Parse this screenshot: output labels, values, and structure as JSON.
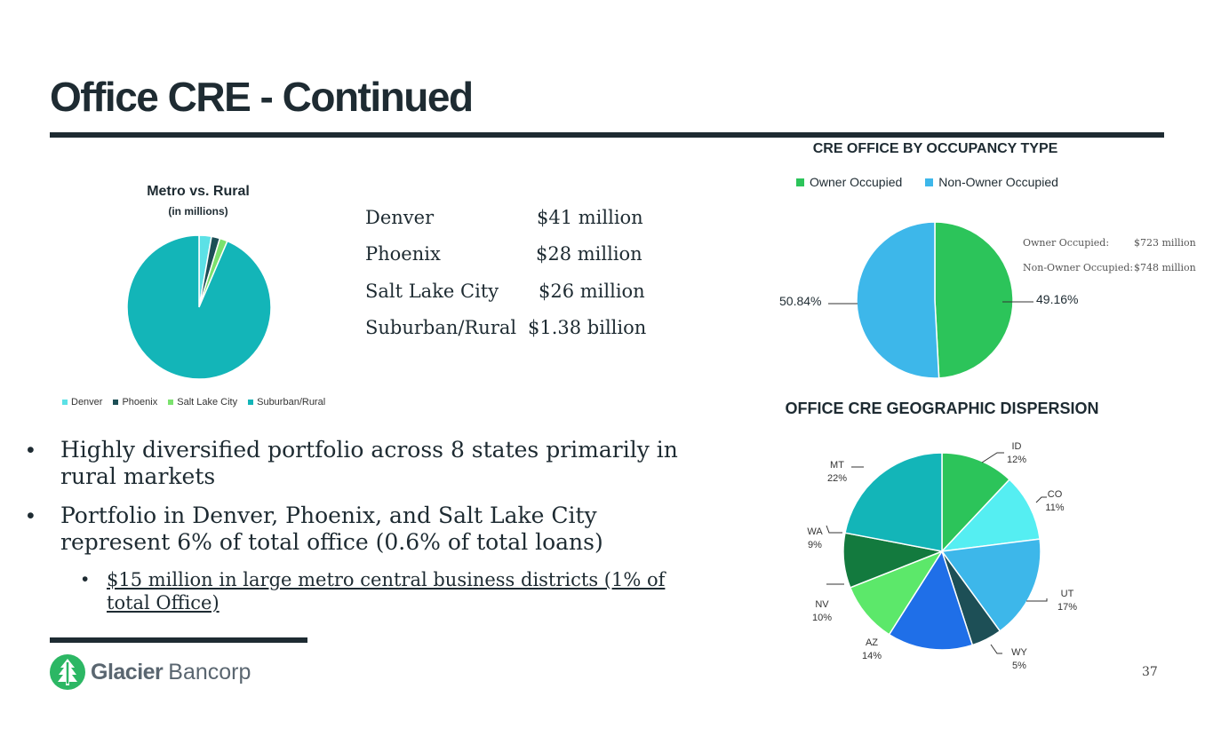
{
  "title": "Office CRE - Continued",
  "metro_chart": {
    "title": "Metro vs. Rural",
    "subtitle": "(in millions)",
    "legend": [
      "Denver",
      "Phoenix",
      "Salt Lake City",
      "Suburban/Rural"
    ],
    "colors": [
      "#5ce1e6",
      "#1d4f56",
      "#7be26e",
      "#13b5b8"
    ]
  },
  "metro_list": [
    {
      "city": "Denver",
      "amount": "$41 million"
    },
    {
      "city": "Phoenix",
      "amount": "$28 million"
    },
    {
      "city": "Salt Lake City",
      "amount": "$26 million"
    },
    {
      "city": "Suburban/Rural",
      "amount": "$1.38 billion"
    }
  ],
  "occupancy": {
    "title": "CRE OFFICE BY OCCUPANCY TYPE",
    "legend": [
      "Owner Occupied",
      "Non-Owner Occupied"
    ],
    "notes": [
      {
        "label": "Owner Occupied:",
        "value": "$723 million"
      },
      {
        "label": "Non-Owner Occupied:",
        "value": "$748 million"
      }
    ],
    "pct_labels": {
      "owner": "49.16%",
      "non_owner": "50.84%"
    },
    "colors": [
      "#2cc45a",
      "#3db7ea"
    ]
  },
  "geo": {
    "title": "OFFICE CRE GEOGRAPHIC DISPERSION"
  },
  "bullets": {
    "b1": "Highly diversified portfolio across 8 states primarily in rural markets",
    "b2": "Portfolio in Denver, Phoenix, and Salt Lake City represent 6% of total office (0.6% of total loans)",
    "b2_sub": "$15 million in large metro central business districts (1% of total Office)"
  },
  "logo": {
    "name_bold": "Glacier",
    "name_light": "Bancorp"
  },
  "page_number": "37",
  "chart_data": [
    {
      "type": "pie",
      "title": "Metro vs. Rural",
      "subtitle": "(in millions)",
      "categories": [
        "Denver",
        "Phoenix",
        "Salt Lake City",
        "Suburban/Rural"
      ],
      "values": [
        41,
        28,
        26,
        1380
      ]
    },
    {
      "type": "pie",
      "title": "CRE OFFICE BY OCCUPANCY TYPE",
      "categories": [
        "Owner Occupied",
        "Non-Owner Occupied"
      ],
      "values": [
        49.16,
        50.84
      ]
    },
    {
      "type": "pie",
      "title": "OFFICE CRE GEOGRAPHIC DISPERSION",
      "categories": [
        "ID",
        "CO",
        "UT",
        "WY",
        "AZ",
        "NV",
        "WA",
        "MT"
      ],
      "values": [
        12,
        11,
        17,
        5,
        14,
        10,
        9,
        22
      ],
      "value_labels": [
        "12%",
        "11%",
        "17%",
        "5%",
        "14%",
        "10%",
        "9%",
        "22%"
      ],
      "colors": [
        "#2cc45a",
        "#55eef2",
        "#3db7ea",
        "#1d4f56",
        "#1f6fe8",
        "#5ce86a",
        "#137a3e",
        "#13b5b8"
      ]
    }
  ]
}
